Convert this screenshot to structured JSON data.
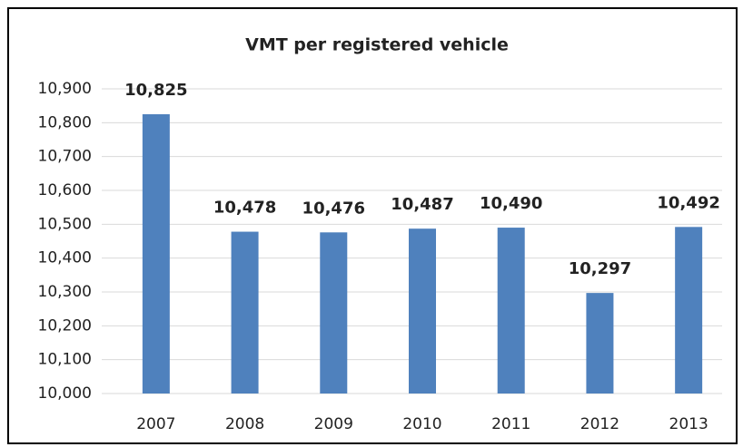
{
  "chart_data": {
    "type": "bar",
    "title": "VMT per registered vehicle",
    "categories": [
      "2007",
      "2008",
      "2009",
      "2010",
      "2011",
      "2012",
      "2013"
    ],
    "values": [
      10825,
      10478,
      10476,
      10487,
      10490,
      10297,
      10492
    ],
    "value_labels": [
      "10,825",
      "10,478",
      "10,476",
      "10,487",
      "10,490",
      "10,297",
      "10,492"
    ],
    "color": "#4f81bd",
    "ylim": [
      10000,
      10900
    ],
    "yticks": [
      {
        "value": 10000,
        "label": "10,000"
      },
      {
        "value": 10100,
        "label": "10,100"
      },
      {
        "value": 10200,
        "label": "10,200"
      },
      {
        "value": 10300,
        "label": "10,300"
      },
      {
        "value": 10400,
        "label": "10,400"
      },
      {
        "value": 10500,
        "label": "10,500"
      },
      {
        "value": 10600,
        "label": "10,600"
      },
      {
        "value": 10700,
        "label": "10,700"
      },
      {
        "value": 10800,
        "label": "10,800"
      },
      {
        "value": 10900,
        "label": "10,900"
      }
    ],
    "grid": true
  }
}
